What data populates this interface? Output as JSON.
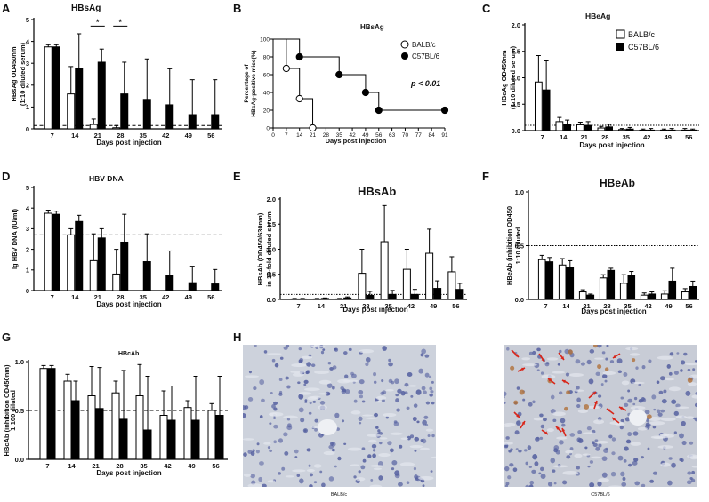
{
  "figure": {
    "panels": {
      "A": "A",
      "B": "B",
      "C": "C",
      "D": "D",
      "E": "E",
      "F": "F",
      "G": "G",
      "H": "H"
    },
    "legend_B": {
      "balb": "BALB/c",
      "c57": "C57BL/6"
    },
    "legend_C": {
      "balb": "BALB/c",
      "c57": "C57BL/6"
    },
    "pvalue_B": "p < 0.01",
    "histology_labels": [
      "BALB/c",
      "C57BL/6"
    ],
    "colors": {
      "balb_fill": "#ffffff",
      "c57_fill": "#000000",
      "tissue_bg": "#c9ced8",
      "nucleus": "#5560a0",
      "arrow": "#d8261a"
    }
  },
  "chart_data": [
    {
      "id": "A",
      "type": "bar",
      "title": "HBsAg",
      "xlabel": "Days post injection",
      "ylabel": [
        "HBsAg OD450nm",
        "(1:10 diluted serum)"
      ],
      "categories": [
        "7",
        "14",
        "21",
        "28",
        "35",
        "42",
        "49",
        "56"
      ],
      "ylim": [
        0,
        5
      ],
      "yticks": [
        0,
        1,
        2,
        3,
        4,
        5
      ],
      "series": [
        {
          "name": "BALB/c",
          "values": [
            3.75,
            1.6,
            0.2,
            0.05,
            null,
            null,
            null,
            null
          ],
          "err": [
            0.1,
            1.25,
            0.25,
            0.1,
            null,
            null,
            null,
            null
          ]
        },
        {
          "name": "C57BL/6",
          "values": [
            3.75,
            2.75,
            3.05,
            1.6,
            1.35,
            1.1,
            0.65,
            0.65
          ],
          "err": [
            0.1,
            1.6,
            0.6,
            1.45,
            1.85,
            1.65,
            1.6,
            1.6
          ]
        }
      ],
      "reference_line": 0.15,
      "reference_style": "dashed",
      "annotations": [
        {
          "text": "*",
          "between": [
            "21",
            "21"
          ]
        },
        {
          "text": "*",
          "between": [
            "28",
            "28"
          ]
        }
      ]
    },
    {
      "id": "B",
      "type": "line",
      "title": "HBsAg",
      "xlabel": "Days post injection",
      "ylabel": [
        "Percentage of",
        "HBsAg-positive mice(%)"
      ],
      "xticks": [
        0,
        7,
        14,
        21,
        28,
        35,
        42,
        49,
        56,
        63,
        70,
        77,
        84,
        91
      ],
      "xlim": [
        0,
        91
      ],
      "yticks": [
        0,
        20,
        40,
        60,
        80,
        100
      ],
      "ylim": [
        0,
        100
      ],
      "series": [
        {
          "name": "BALB/c",
          "x": [
            0,
            7,
            14,
            21
          ],
          "y": [
            100,
            67,
            33,
            0
          ]
        },
        {
          "name": "C57BL/6",
          "x": [
            0,
            14,
            35,
            49,
            56,
            91
          ],
          "y": [
            100,
            80,
            60,
            40,
            20,
            20
          ]
        }
      ],
      "annotation": "p < 0.01"
    },
    {
      "id": "C",
      "type": "bar",
      "title": "HBeAg",
      "xlabel": "Days post injection",
      "ylabel": [
        "HBeAg OD450nm",
        "(1:10 diluted serum)"
      ],
      "categories": [
        "7",
        "14",
        "21",
        "28",
        "35",
        "42",
        "49",
        "56"
      ],
      "ylim": [
        0,
        2.0
      ],
      "yticks": [
        0.0,
        0.5,
        1.0,
        1.5,
        2.0
      ],
      "series": [
        {
          "name": "BALB/c",
          "values": [
            0.92,
            0.17,
            0.11,
            0.05,
            0.02,
            0.01,
            0.01,
            0.01
          ],
          "err": [
            0.5,
            0.08,
            0.05,
            0.03,
            0.02,
            0.02,
            0.02,
            0.03
          ]
        },
        {
          "name": "C57BL/6",
          "values": [
            0.77,
            0.12,
            0.1,
            0.07,
            0.03,
            0.01,
            0.01,
            0.01
          ],
          "err": [
            0.55,
            0.08,
            0.07,
            0.05,
            0.03,
            0.03,
            0.03,
            0.02
          ]
        }
      ],
      "reference_line": 0.1,
      "reference_style": "dotted",
      "legend": "top-right"
    },
    {
      "id": "D",
      "type": "bar",
      "title": "HBV DNA",
      "xlabel": "Days post injection",
      "ylabel": [
        "lg HBV DNA (IU/ml)"
      ],
      "categories": [
        "7",
        "14",
        "21",
        "28",
        "35",
        "42",
        "49",
        "56"
      ],
      "ylim": [
        0,
        5
      ],
      "yticks": [
        0,
        1,
        2,
        3,
        4,
        5
      ],
      "series": [
        {
          "name": "BALB/c",
          "values": [
            3.75,
            2.7,
            1.45,
            0.8,
            null,
            null,
            null,
            null
          ],
          "err": [
            0.15,
            0.3,
            1.3,
            1.2,
            null,
            null,
            null,
            null
          ]
        },
        {
          "name": "C57BL/6",
          "values": [
            3.7,
            3.35,
            2.55,
            2.35,
            1.4,
            0.72,
            0.38,
            0.32
          ],
          "err": [
            0.15,
            0.3,
            0.45,
            1.35,
            1.35,
            1.2,
            0.8,
            0.7
          ]
        }
      ],
      "reference_line": 2.7,
      "reference_style": "dashed"
    },
    {
      "id": "E",
      "type": "bar",
      "title": "HBsAb",
      "xlabel": "Days post injection",
      "ylabel": [
        "HBsAb (OD450/630nm)",
        "in 10-fold diluted serum"
      ],
      "categories": [
        "7",
        "14",
        "21",
        "28",
        "35",
        "42",
        "49",
        "56"
      ],
      "ylim": [
        0,
        2.0
      ],
      "yticks": [
        0.0,
        0.5,
        1.0,
        1.5,
        2.0
      ],
      "series": [
        {
          "name": "BALB/c",
          "values": [
            0.01,
            0.01,
            0.01,
            0.52,
            1.15,
            0.6,
            0.92,
            0.55
          ],
          "err": [
            0.01,
            0.01,
            0.01,
            0.48,
            0.72,
            0.4,
            0.48,
            0.3
          ]
        },
        {
          "name": "C57BL/6",
          "values": [
            0.01,
            0.02,
            0.03,
            0.08,
            0.1,
            0.1,
            0.22,
            0.2
          ],
          "err": [
            0.01,
            0.01,
            0.02,
            0.08,
            0.08,
            0.1,
            0.15,
            0.12
          ]
        }
      ],
      "reference_line": 0.1,
      "reference_style": "dotted"
    },
    {
      "id": "F",
      "type": "bar",
      "title": "HBeAb",
      "xlabel": "Days post injection",
      "ylabel": [
        "HBeAb (inhibition OD450",
        "1:10 diluted"
      ],
      "categories": [
        "7",
        "14",
        "21",
        "28",
        "35",
        "42",
        "49",
        "56"
      ],
      "ylim": [
        0,
        1.0
      ],
      "yticks": [
        0.0,
        0.5,
        1.0
      ],
      "series": [
        {
          "name": "BALB/c",
          "values": [
            0.37,
            0.32,
            0.07,
            0.2,
            0.15,
            0.04,
            0.05,
            0.07
          ],
          "err": [
            0.04,
            0.06,
            0.02,
            0.03,
            0.08,
            0.02,
            0.03,
            0.03
          ]
        },
        {
          "name": "C57BL/6",
          "values": [
            0.35,
            0.3,
            0.04,
            0.27,
            0.22,
            0.05,
            0.17,
            0.12
          ],
          "err": [
            0.04,
            0.06,
            0.01,
            0.02,
            0.04,
            0.02,
            0.12,
            0.05
          ]
        }
      ],
      "reference_line": 0.5,
      "reference_style": "dotted"
    },
    {
      "id": "G",
      "type": "bar",
      "title": "HBcAb",
      "xlabel": "Days post injection",
      "ylabel": [
        "HBcAb (inhibition OD450nm)",
        "1:100 diluted"
      ],
      "categories": [
        "7",
        "14",
        "21",
        "28",
        "35",
        "42",
        "49",
        "56"
      ],
      "ylim": [
        0,
        1.0
      ],
      "yticks": [
        0.0,
        0.5,
        1.0
      ],
      "series": [
        {
          "name": "BALB/c",
          "values": [
            0.93,
            0.8,
            0.65,
            0.68,
            0.65,
            0.45,
            0.53,
            0.5
          ],
          "err": [
            0.03,
            0.07,
            0.3,
            0.12,
            0.32,
            0.25,
            0.07,
            0.07
          ]
        },
        {
          "name": "C57BL/6",
          "values": [
            0.93,
            0.6,
            0.52,
            0.41,
            0.3,
            0.4,
            0.4,
            0.45
          ],
          "err": [
            0.03,
            0.2,
            0.42,
            0.5,
            0.55,
            0.35,
            0.45,
            0.4
          ]
        }
      ],
      "reference_line": 0.5,
      "reference_style": "dashed"
    }
  ]
}
